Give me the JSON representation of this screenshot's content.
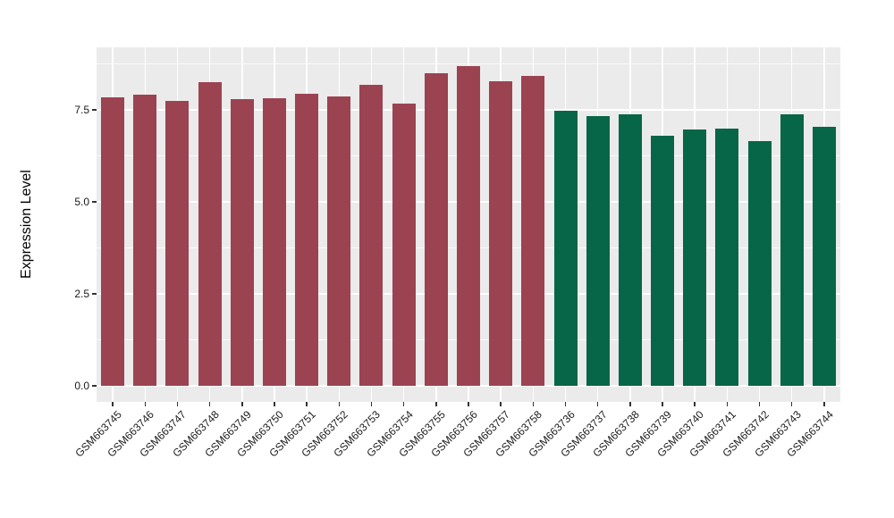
{
  "chart_data": {
    "type": "bar",
    "title": "",
    "xlabel": "",
    "ylabel": "Expression Level",
    "legend_position": "none",
    "grid": "on",
    "panel_background": "#EBEBEB",
    "gridline_color": "#FFFFFF",
    "ylim": [
      -0.44,
      9.2
    ],
    "yticks": [
      {
        "value": 0.0,
        "label": "0.0"
      },
      {
        "value": 2.5,
        "label": "2.5"
      },
      {
        "value": 5.0,
        "label": "5.0"
      },
      {
        "value": 7.5,
        "label": "7.5"
      }
    ],
    "y_minor": [
      1.25,
      3.75,
      6.25,
      8.75
    ],
    "group_colors": {
      "maroon": "#9B4351",
      "green": "#066647"
    },
    "bars": [
      {
        "label": "GSM663745",
        "value": 7.85,
        "group": "maroon"
      },
      {
        "label": "GSM663746",
        "value": 7.92,
        "group": "maroon"
      },
      {
        "label": "GSM663747",
        "value": 7.74,
        "group": "maroon"
      },
      {
        "label": "GSM663748",
        "value": 8.26,
        "group": "maroon"
      },
      {
        "label": "GSM663749",
        "value": 7.78,
        "group": "maroon"
      },
      {
        "label": "GSM663750",
        "value": 7.81,
        "group": "maroon"
      },
      {
        "label": "GSM663751",
        "value": 7.94,
        "group": "maroon"
      },
      {
        "label": "GSM663752",
        "value": 7.86,
        "group": "maroon"
      },
      {
        "label": "GSM663753",
        "value": 8.19,
        "group": "maroon"
      },
      {
        "label": "GSM663754",
        "value": 7.68,
        "group": "maroon"
      },
      {
        "label": "GSM663755",
        "value": 8.5,
        "group": "maroon"
      },
      {
        "label": "GSM663756",
        "value": 8.68,
        "group": "maroon"
      },
      {
        "label": "GSM663757",
        "value": 8.27,
        "group": "maroon"
      },
      {
        "label": "GSM663758",
        "value": 8.42,
        "group": "maroon"
      },
      {
        "label": "GSM663736",
        "value": 7.47,
        "group": "green"
      },
      {
        "label": "GSM663737",
        "value": 7.34,
        "group": "green"
      },
      {
        "label": "GSM663738",
        "value": 7.38,
        "group": "green"
      },
      {
        "label": "GSM663739",
        "value": 6.79,
        "group": "green"
      },
      {
        "label": "GSM663740",
        "value": 6.97,
        "group": "green"
      },
      {
        "label": "GSM663741",
        "value": 7.0,
        "group": "green"
      },
      {
        "label": "GSM663742",
        "value": 6.64,
        "group": "green"
      },
      {
        "label": "GSM663743",
        "value": 7.39,
        "group": "green"
      },
      {
        "label": "GSM663744",
        "value": 7.05,
        "group": "green"
      }
    ]
  }
}
